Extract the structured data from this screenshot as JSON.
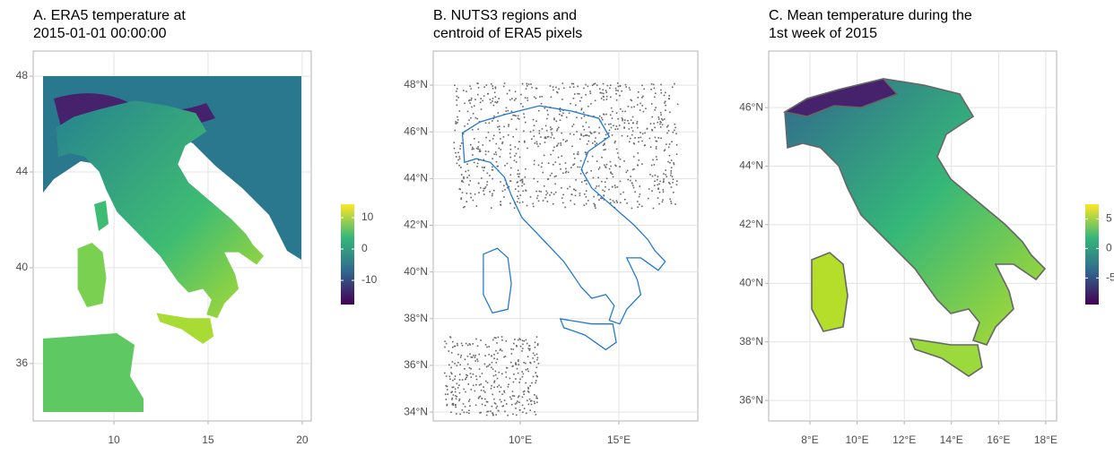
{
  "panels": [
    {
      "title_lines": [
        "A. ERA5 temperature at",
        "2015-01-01 00:00:00"
      ],
      "xlim": [
        5.71,
        20.48
      ],
      "ylim": [
        33.6,
        49.05
      ],
      "xticks": [
        10,
        15,
        20
      ],
      "yticks": [
        36,
        40,
        44,
        48
      ],
      "colorbar": {
        "lim": [
          -17.7,
          14.3
        ],
        "ticks": [
          10,
          0,
          -10
        ],
        "colors": [
          "#440154",
          "#31688e",
          "#35b779",
          "#fde725"
        ]
      }
    },
    {
      "title_lines": [
        "B. NUTS3 regions and",
        "centroid of ERA5 pixels"
      ],
      "xlim": [
        5.59,
        19
      ],
      "ylim": [
        33.62,
        49.46
      ],
      "xticks": [
        {
          "value": 10,
          "label": "10°E"
        },
        {
          "value": 15,
          "label": "15°E"
        }
      ],
      "yticks": [
        {
          "value": 48,
          "label": "48°N"
        },
        {
          "value": 46,
          "label": "46°N"
        },
        {
          "value": 44,
          "label": "44°N"
        },
        {
          "value": 42,
          "label": "42°N"
        },
        {
          "value": 40,
          "label": "40°N"
        },
        {
          "value": 38,
          "label": "38°N"
        },
        {
          "value": 36,
          "label": "36°N"
        },
        {
          "value": 34,
          "label": "34°N"
        }
      ],
      "outline_color": "#1f78d1",
      "point_color": "#666666"
    },
    {
      "title_lines": [
        "C. Mean temperature during the",
        "1st week of 2015"
      ],
      "xlim": [
        6.25,
        18.46
      ],
      "ylim": [
        35.3,
        47.93
      ],
      "xticks": [
        {
          "value": 8,
          "label": "8°E"
        },
        {
          "value": 10,
          "label": "10°E"
        },
        {
          "value": 12,
          "label": "12°E"
        },
        {
          "value": 14,
          "label": "14°E"
        },
        {
          "value": 16,
          "label": "16°E"
        },
        {
          "value": 18,
          "label": "18°E"
        }
      ],
      "yticks": [
        {
          "value": 46,
          "label": "46°N"
        },
        {
          "value": 44,
          "label": "44°N"
        },
        {
          "value": 42,
          "label": "42°N"
        },
        {
          "value": 40,
          "label": "40°N"
        },
        {
          "value": 38,
          "label": "38°N"
        },
        {
          "value": 36,
          "label": "36°N"
        }
      ],
      "outline_color": "#666666",
      "colorbar": {
        "lim": [
          -9.5,
          7.5
        ],
        "ticks": [
          5,
          0,
          -5
        ],
        "colors": [
          "#440154",
          "#31688e",
          "#35b779",
          "#fde725"
        ]
      }
    }
  ]
}
